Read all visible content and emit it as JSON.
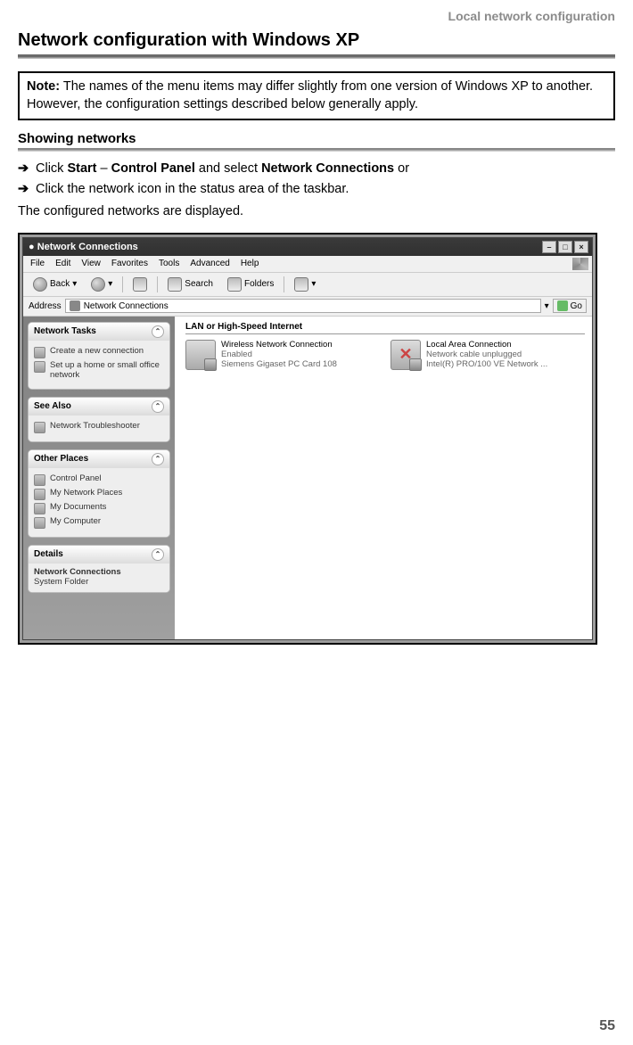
{
  "header": {
    "running_head": "Local network configuration"
  },
  "title": "Network configuration with Windows XP",
  "note": {
    "title": "Note:",
    "text": "The names of the menu items may differ slightly from one version of Windows XP to another. However, the configuration settings described below generally apply."
  },
  "subheading": "Showing networks",
  "steps": [
    {
      "pre": "Click ",
      "b1": "Start",
      "mid": " – ",
      "b2": "Control Panel",
      "mid2": " and select ",
      "b3": "Network Connections",
      "post": " or"
    },
    {
      "plain": "Click the network icon in the status area of the taskbar."
    }
  ],
  "body_text": "The configured networks are displayed.",
  "page_number": "55",
  "window": {
    "title": "Network Connections",
    "title_icon": "●",
    "sysbuttons": [
      "–",
      "□",
      "×"
    ],
    "menu": [
      "File",
      "Edit",
      "View",
      "Favorites",
      "Tools",
      "Advanced",
      "Help"
    ],
    "toolbar": {
      "back": "Back",
      "search": "Search",
      "folders": "Folders"
    },
    "address": {
      "label": "Address",
      "value": "Network Connections",
      "dropdown": "▾",
      "go": "Go"
    },
    "sidepanels": [
      {
        "title": "Network Tasks",
        "items": [
          {
            "label": "Create a new connection"
          },
          {
            "label": "Set up a home or small office network"
          }
        ]
      },
      {
        "title": "See Also",
        "items": [
          {
            "label": "Network Troubleshooter"
          }
        ]
      },
      {
        "title": "Other Places",
        "items": [
          {
            "label": "Control Panel"
          },
          {
            "label": "My Network Places"
          },
          {
            "label": "My Documents"
          },
          {
            "label": "My Computer"
          }
        ]
      },
      {
        "title": "Details",
        "details_title": "Network Connections",
        "details_sub": "System Folder"
      }
    ],
    "group_header": "LAN or High-Speed Internet",
    "connections": [
      {
        "name": "Wireless Network Connection",
        "line2": "Enabled",
        "line3": "Siemens Gigaset PC Card 108",
        "disabled": false
      },
      {
        "name": "Local Area Connection",
        "line2": "Network cable unplugged",
        "line3": "Intel(R) PRO/100 VE Network ...",
        "disabled": true
      }
    ]
  }
}
